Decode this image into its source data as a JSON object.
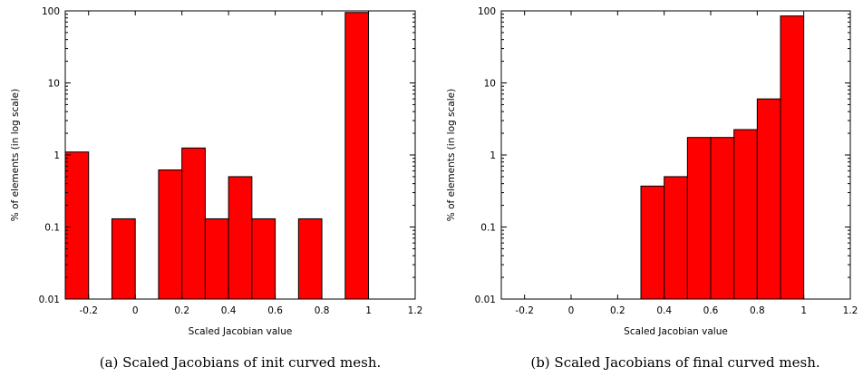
{
  "chart_data": [
    {
      "type": "bar",
      "caption": "(a) Scaled Jacobians of init curved mesh.",
      "xlabel": "Scaled Jacobian value",
      "ylabel": "% of elements (in log scale)",
      "yscale": "log",
      "xlim": [
        -0.3,
        1.2
      ],
      "ylim": [
        0.01,
        100
      ],
      "xticks": [
        -0.2,
        0,
        0.2,
        0.4,
        0.6,
        0.8,
        1,
        1.2
      ],
      "xtick_labels": [
        "-0.2",
        "0",
        "0.2",
        "0.4",
        "0.6",
        "0.8",
        "1",
        "1.2"
      ],
      "yticks": [
        0.01,
        0.1,
        1,
        10,
        100
      ],
      "ytick_labels": [
        "0.01",
        "0.1",
        "1",
        "10",
        "100"
      ],
      "bin_width": 0.1,
      "bars": [
        {
          "x0": -0.3,
          "value": 1.1
        },
        {
          "x0": -0.1,
          "value": 0.13
        },
        {
          "x0": 0.1,
          "value": 0.62
        },
        {
          "x0": 0.2,
          "value": 1.25
        },
        {
          "x0": 0.3,
          "value": 0.13
        },
        {
          "x0": 0.4,
          "value": 0.5
        },
        {
          "x0": 0.5,
          "value": 0.13
        },
        {
          "x0": 0.7,
          "value": 0.13
        },
        {
          "x0": 0.9,
          "value": 95
        }
      ],
      "bar_color": "#ff0000"
    },
    {
      "type": "bar",
      "caption": "(b) Scaled Jacobians of final curved mesh.",
      "xlabel": "Scaled Jacobian value",
      "ylabel": "% of elements (in log scale)",
      "yscale": "log",
      "xlim": [
        -0.3,
        1.2
      ],
      "ylim": [
        0.01,
        100
      ],
      "xticks": [
        -0.2,
        0,
        0.2,
        0.4,
        0.6,
        0.8,
        1,
        1.2
      ],
      "xtick_labels": [
        "-0.2",
        "0",
        "0.2",
        "0.4",
        "0.6",
        "0.8",
        "1",
        "1.2"
      ],
      "yticks": [
        0.01,
        0.1,
        1,
        10,
        100
      ],
      "ytick_labels": [
        "0.01",
        "0.1",
        "1",
        "10",
        "100"
      ],
      "bin_width": 0.1,
      "bars": [
        {
          "x0": 0.3,
          "value": 0.37
        },
        {
          "x0": 0.4,
          "value": 0.5
        },
        {
          "x0": 0.5,
          "value": 1.75
        },
        {
          "x0": 0.6,
          "value": 1.75
        },
        {
          "x0": 0.7,
          "value": 2.25
        },
        {
          "x0": 0.8,
          "value": 6.0
        },
        {
          "x0": 0.9,
          "value": 85
        }
      ],
      "bar_color": "#ff0000"
    }
  ]
}
